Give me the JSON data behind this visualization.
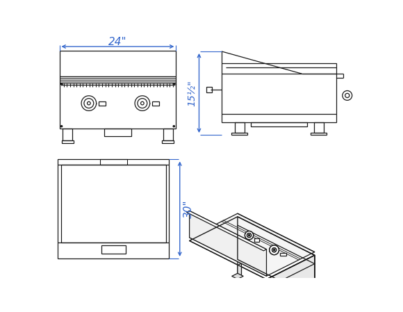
{
  "bg_color": "#ffffff",
  "line_color": "#1a1a1a",
  "dim_color": "#3366cc",
  "fig_width": 5.8,
  "fig_height": 4.49,
  "dim_24_label": "24\"",
  "dim_15_label": "15½\"",
  "dim_30_label": "30\""
}
